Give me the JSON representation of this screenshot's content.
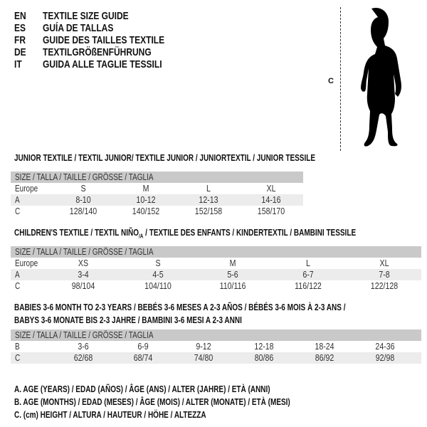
{
  "languages": [
    {
      "code": "EN",
      "text": "TEXTILE SIZE GUIDE"
    },
    {
      "code": "ES",
      "text": "GUÍA DE TALLAS"
    },
    {
      "code": "FR",
      "text": "GUIDE DES TAILLES TEXTILE"
    },
    {
      "code": "DE",
      "text": "TEXTILGRÖßENFÜHRUNG"
    },
    {
      "code": "IT",
      "text": "GUIDA ALLE TAGLIE TESSILI"
    }
  ],
  "figure": {
    "measure_label": "C",
    "icon": "child-silhouette"
  },
  "size_header": "SIZE / TALLA / TAILLE / GRÖSSE / TAGLIA",
  "junior": {
    "title": "JUNIOR TEXTILE / TEXTIL JUNIOR/ TEXTILE JUNIOR / JUNIORTEXTIL / JUNIOR TESSILE",
    "rows": [
      {
        "label": "Europe",
        "values": [
          "S",
          "M",
          "L",
          "XL"
        ]
      },
      {
        "label": "A",
        "values": [
          "8-10",
          "10-12",
          "12-13",
          "14-16"
        ]
      },
      {
        "label": "C",
        "values": [
          "128/140",
          "140/152",
          "152/158",
          "158/170"
        ]
      }
    ]
  },
  "children": {
    "title": "CHILDREN'S TEXTILE / TEXTIL NIÑO",
    "title_sub": "/A",
    "title_rest": " / TEXTILE DES ENFANTS / KINDERTEXTIL / BAMBINI TESSILE",
    "rows": [
      {
        "label": "Europe",
        "values": [
          "XS",
          "S",
          "M",
          "L",
          "XL"
        ]
      },
      {
        "label": "A",
        "values": [
          "3-4",
          "4-5",
          "5-6",
          "6-7",
          "7-8"
        ]
      },
      {
        "label": "C",
        "values": [
          "98/104",
          "104/110",
          "110/116",
          "116/122",
          "122/128"
        ]
      }
    ]
  },
  "babies": {
    "title_line1": "BABIES 3-6 MONTH TO 2-3 YEARS / BEBÉS 3-6 MESES A 2-3 AÑOS / BÉBÉS 3-6 MOIS À 2-3 ANS /",
    "title_line2": "BABYS 3-6 MONATE BIS 2-3 JAHRE / BAMBINI 3-6 MESI A 2-3 ANNI",
    "rows": [
      {
        "label": "B",
        "values": [
          "3-6",
          "6-9",
          "9-12",
          "12-18",
          "18-24",
          "24-36"
        ]
      },
      {
        "label": "C",
        "values": [
          "62/68",
          "68/74",
          "74/80",
          "80/86",
          "86/92",
          "92/98"
        ]
      }
    ]
  },
  "legend": [
    "A. AGE (YEARS) / EDAD (AÑOS) / ÂGE (ANS) / ALTER (JAHRE) / ETÀ (ANNI)",
    "B. AGE (MONTHS) / EDAD (MESES) / ÂGE (MOIS) / ALTER (MONATE) / ETÀ (MESI)",
    "C. (cm) HEIGHT / ALTURA / HAUTEUR / HÖHE / ALTEZZA"
  ]
}
